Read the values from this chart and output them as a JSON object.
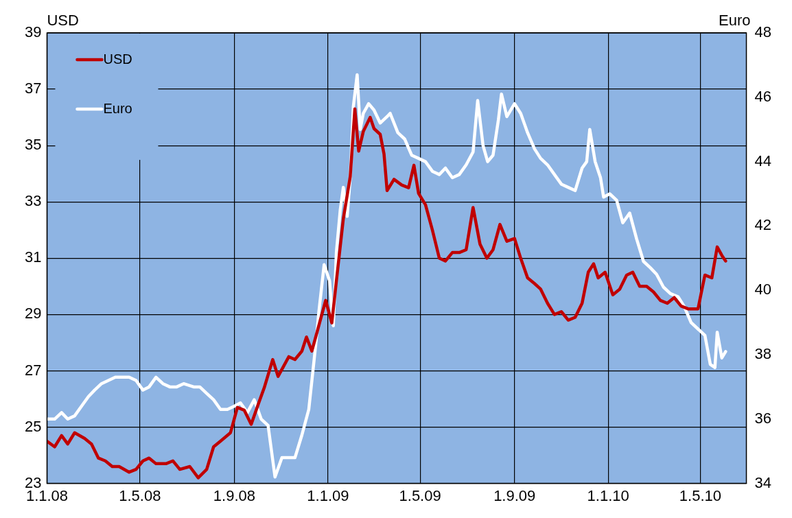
{
  "chart_data": {
    "type": "line",
    "ylabel": "USD",
    "y2label": "Euro",
    "xlim": [
      "2008-01-01",
      "2010-06-30"
    ],
    "xticks": [
      {
        "value": "2008-01-01",
        "label": "1.1.08"
      },
      {
        "value": "2008-05-01",
        "label": "1.5.08"
      },
      {
        "value": "2008-09-01",
        "label": "1.9.08"
      },
      {
        "value": "2009-01-01",
        "label": "1.1.09"
      },
      {
        "value": "2009-05-01",
        "label": "1.5.09"
      },
      {
        "value": "2009-09-01",
        "label": "1.9.09"
      },
      {
        "value": "2010-01-01",
        "label": "1.1.10"
      },
      {
        "value": "2010-05-01",
        "label": "1.5.10"
      }
    ],
    "ylim": [
      23,
      39
    ],
    "yticks": [
      23,
      25,
      27,
      29,
      31,
      33,
      35,
      37,
      39
    ],
    "y2lim": [
      34,
      48
    ],
    "y2ticks": [
      34,
      36,
      38,
      40,
      42,
      44,
      46,
      48
    ],
    "grid": true,
    "legend": "top left",
    "marker": "none",
    "line_style": "solid",
    "series": [
      {
        "name": "USD",
        "color": "#c00000",
        "x": [
          "2008-01-01",
          "2008-01-11",
          "2008-01-20",
          "2008-01-28",
          "2008-02-06",
          "2008-02-19",
          "2008-02-28",
          "2008-03-08",
          "2008-03-17",
          "2008-03-26",
          "2008-04-04",
          "2008-04-17",
          "2008-04-26",
          "2008-05-05",
          "2008-05-13",
          "2008-05-22",
          "2008-06-04",
          "2008-06-13",
          "2008-06-22",
          "2008-07-05",
          "2008-07-16",
          "2008-07-27",
          "2008-08-05",
          "2008-08-14",
          "2008-08-27",
          "2008-09-05",
          "2008-09-14",
          "2008-09-23",
          "2008-10-02",
          "2008-10-10",
          "2008-10-21",
          "2008-10-28",
          "2008-11-11",
          "2008-11-19",
          "2008-11-28",
          "2008-12-04",
          "2008-12-11",
          "2008-12-20",
          "2008-12-29",
          "2009-01-06",
          "2009-01-12",
          "2009-01-21",
          "2009-01-30",
          "2009-02-05",
          "2009-02-10",
          "2009-02-16",
          "2009-02-25",
          "2009-03-02",
          "2009-03-10",
          "2009-03-15",
          "2009-03-19",
          "2009-03-28",
          "2009-04-07",
          "2009-04-16",
          "2009-04-23",
          "2009-04-29",
          "2009-05-08",
          "2009-05-17",
          "2009-05-26",
          "2009-06-03",
          "2009-06-12",
          "2009-06-21",
          "2009-06-30",
          "2009-07-09",
          "2009-07-18",
          "2009-07-27",
          "2009-08-04",
          "2009-08-13",
          "2009-08-22",
          "2009-09-01",
          "2009-09-09",
          "2009-09-18",
          "2009-09-27",
          "2009-10-05",
          "2009-10-14",
          "2009-10-23",
          "2009-11-01",
          "2009-11-10",
          "2009-11-19",
          "2009-11-28",
          "2009-12-06",
          "2009-12-13",
          "2009-12-19",
          "2009-12-28",
          "2010-01-07",
          "2010-01-16",
          "2010-01-25",
          "2010-02-02",
          "2010-02-11",
          "2010-02-20",
          "2010-03-01",
          "2010-03-10",
          "2010-03-19",
          "2010-03-28",
          "2010-04-06",
          "2010-04-15",
          "2010-04-28",
          "2010-05-07",
          "2010-05-16",
          "2010-05-23",
          "2010-05-29",
          "2010-06-03"
        ],
        "values": [
          24.5,
          24.3,
          24.7,
          24.4,
          24.8,
          24.6,
          24.4,
          23.9,
          23.8,
          23.6,
          23.6,
          23.4,
          23.5,
          23.8,
          23.9,
          23.7,
          23.7,
          23.8,
          23.5,
          23.6,
          23.2,
          23.5,
          24.3,
          24.5,
          24.8,
          25.7,
          25.6,
          25.1,
          25.8,
          26.4,
          27.4,
          26.8,
          27.5,
          27.4,
          27.7,
          28.2,
          27.7,
          28.6,
          29.5,
          28.7,
          30.2,
          32.4,
          33.9,
          36.3,
          34.8,
          35.5,
          36.0,
          35.6,
          35.4,
          34.7,
          33.4,
          33.8,
          33.6,
          33.5,
          34.3,
          33.3,
          32.9,
          32.0,
          31.0,
          30.9,
          31.2,
          31.2,
          31.3,
          32.8,
          31.5,
          31.0,
          31.3,
          32.2,
          31.6,
          31.7,
          31.0,
          30.3,
          30.1,
          29.9,
          29.4,
          29.0,
          29.1,
          28.8,
          28.9,
          29.4,
          30.5,
          30.8,
          30.3,
          30.5,
          29.7,
          29.9,
          30.4,
          30.5,
          30.0,
          30.0,
          29.8,
          29.5,
          29.4,
          29.6,
          29.3,
          29.2,
          29.2,
          30.4,
          30.3,
          31.4,
          31.1,
          30.9
        ]
      },
      {
        "name": "Euro",
        "color": "#ffffff",
        "axis": "y2",
        "x": [
          "2008-01-01",
          "2008-01-11",
          "2008-01-20",
          "2008-01-28",
          "2008-02-06",
          "2008-02-15",
          "2008-02-24",
          "2008-03-03",
          "2008-03-12",
          "2008-03-21",
          "2008-03-30",
          "2008-04-08",
          "2008-04-17",
          "2008-04-26",
          "2008-05-05",
          "2008-05-13",
          "2008-05-22",
          "2008-05-31",
          "2008-06-09",
          "2008-06-18",
          "2008-06-27",
          "2008-07-10",
          "2008-07-18",
          "2008-07-27",
          "2008-08-05",
          "2008-08-14",
          "2008-08-23",
          "2008-09-01",
          "2008-09-09",
          "2008-09-18",
          "2008-09-27",
          "2008-10-06",
          "2008-10-15",
          "2008-10-24",
          "2008-11-02",
          "2008-11-11",
          "2008-11-19",
          "2008-11-28",
          "2008-12-07",
          "2008-12-16",
          "2008-12-20",
          "2008-12-27",
          "2009-01-03",
          "2009-01-08",
          "2009-01-12",
          "2009-01-17",
          "2009-01-21",
          "2009-01-26",
          "2009-01-30",
          "2009-02-03",
          "2009-02-08",
          "2009-02-12",
          "2009-02-16",
          "2009-02-23",
          "2009-03-02",
          "2009-03-10",
          "2009-03-19",
          "2009-03-23",
          "2009-04-02",
          "2009-04-11",
          "2009-04-20",
          "2009-04-29",
          "2009-05-08",
          "2009-05-17",
          "2009-05-26",
          "2009-06-03",
          "2009-06-12",
          "2009-06-21",
          "2009-06-30",
          "2009-07-09",
          "2009-07-15",
          "2009-07-22",
          "2009-07-28",
          "2009-08-04",
          "2009-08-11",
          "2009-08-15",
          "2009-08-22",
          "2009-09-01",
          "2009-09-09",
          "2009-09-18",
          "2009-09-27",
          "2009-10-05",
          "2009-10-14",
          "2009-10-23",
          "2009-11-01",
          "2009-11-10",
          "2009-11-19",
          "2009-11-28",
          "2009-12-04",
          "2009-12-08",
          "2009-12-15",
          "2009-12-22",
          "2009-12-26",
          "2010-01-03",
          "2010-01-12",
          "2010-01-20",
          "2010-01-29",
          "2010-02-07",
          "2010-02-16",
          "2010-02-25",
          "2010-03-05",
          "2010-03-14",
          "2010-03-23",
          "2010-04-02",
          "2010-04-10",
          "2010-04-19",
          "2010-04-28",
          "2010-05-07",
          "2010-05-14",
          "2010-05-20",
          "2010-05-23",
          "2010-05-29",
          "2010-06-03"
        ],
        "values": [
          36.0,
          36.0,
          36.2,
          36.0,
          36.1,
          36.4,
          36.7,
          36.9,
          37.1,
          37.2,
          37.3,
          37.3,
          37.3,
          37.2,
          36.9,
          37.0,
          37.3,
          37.1,
          37.0,
          37.0,
          37.1,
          37.0,
          37.0,
          36.8,
          36.6,
          36.3,
          36.3,
          36.4,
          36.5,
          36.2,
          36.6,
          36.0,
          35.8,
          34.2,
          34.8,
          34.8,
          34.8,
          35.5,
          36.3,
          38.3,
          39.3,
          40.8,
          40.3,
          38.9,
          41.2,
          42.5,
          43.2,
          42.3,
          43.5,
          45.7,
          46.7,
          45.0,
          45.5,
          45.8,
          45.6,
          45.2,
          45.4,
          45.5,
          44.9,
          44.7,
          44.2,
          44.1,
          44.0,
          43.7,
          43.6,
          43.8,
          43.5,
          43.6,
          43.9,
          44.3,
          45.9,
          44.5,
          44.0,
          44.2,
          45.3,
          46.1,
          45.4,
          45.8,
          45.5,
          44.9,
          44.4,
          44.1,
          43.9,
          43.6,
          43.3,
          43.2,
          43.1,
          43.8,
          44.0,
          45.0,
          44.0,
          43.5,
          42.9,
          43.0,
          42.8,
          42.1,
          42.4,
          41.6,
          40.9,
          40.7,
          40.5,
          40.1,
          39.9,
          39.8,
          39.5,
          39.0,
          38.8,
          38.6,
          37.7,
          37.6,
          38.7,
          37.9,
          38.1
        ]
      }
    ]
  }
}
